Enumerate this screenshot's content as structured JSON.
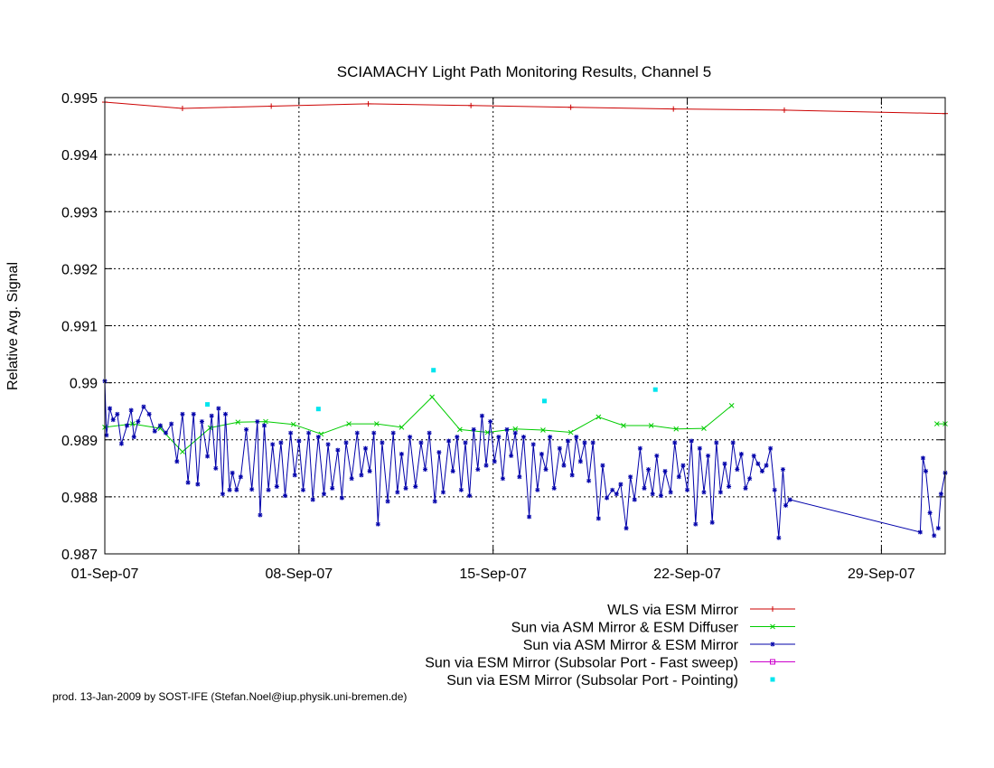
{
  "credit": "prod. 13-Jan-2009 by SOST-IFE (Stefan.Noel@iup.physik.uni-bremen.de)",
  "chart_data": {
    "type": "line",
    "title": "SCIAMACHY Light Path Monitoring Results, Channel 5",
    "xlabel": "",
    "ylabel": "Relative Avg. Signal",
    "x_unit": "days",
    "xlim": [
      0,
      30.3
    ],
    "ylim": [
      0.987,
      0.995
    ],
    "grid": true,
    "legend_position": "bottom-right",
    "x_ticks": [
      {
        "label": "01-Sep-07",
        "value": 0
      },
      {
        "label": "08-Sep-07",
        "value": 7
      },
      {
        "label": "15-Sep-07",
        "value": 14
      },
      {
        "label": "22-Sep-07",
        "value": 21
      },
      {
        "label": "29-Sep-07",
        "value": 28
      }
    ],
    "y_ticks": [
      {
        "label": "0.987",
        "value": 0.987
      },
      {
        "label": "0.988",
        "value": 0.988
      },
      {
        "label": "0.989",
        "value": 0.989
      },
      {
        "label": "0.99",
        "value": 0.99
      },
      {
        "label": "0.991",
        "value": 0.991
      },
      {
        "label": "0.992",
        "value": 0.992
      },
      {
        "label": "0.993",
        "value": 0.993
      },
      {
        "label": "0.994",
        "value": 0.994
      },
      {
        "label": "0.995",
        "value": 0.995
      }
    ],
    "series": [
      {
        "name": "WLS via ESM Mirror",
        "color": "#cc0000",
        "marker": "plus",
        "points": [
          [
            0.0,
            0.99492
          ],
          [
            2.8,
            0.99481
          ],
          [
            6.0,
            0.99485
          ],
          [
            9.5,
            0.99489
          ],
          [
            13.2,
            0.99486
          ],
          [
            16.8,
            0.99483
          ],
          [
            20.5,
            0.9948
          ],
          [
            24.5,
            0.99478
          ],
          [
            30.3,
            0.99472
          ]
        ]
      },
      {
        "name": "Sun via ASM Mirror & ESM Diffuser",
        "color": "#00cc00",
        "marker": "x",
        "points": [
          [
            0.0,
            0.98922
          ],
          [
            1.0,
            0.98928
          ],
          [
            2.0,
            0.9892
          ],
          [
            2.8,
            0.98879
          ],
          [
            3.8,
            0.98921
          ],
          [
            4.8,
            0.98931
          ],
          [
            5.8,
            0.98932
          ],
          [
            6.8,
            0.98927
          ],
          [
            7.8,
            0.9891
          ],
          [
            8.8,
            0.98928
          ],
          [
            9.8,
            0.98928
          ],
          [
            10.7,
            0.98922
          ],
          [
            11.8,
            0.98975
          ],
          [
            12.8,
            0.98918
          ],
          [
            13.8,
            0.98913
          ],
          [
            14.8,
            0.98919
          ],
          [
            15.8,
            0.98917
          ],
          [
            16.8,
            0.98913
          ],
          [
            17.8,
            0.9894
          ],
          [
            18.7,
            0.98925
          ],
          [
            19.7,
            0.98925
          ],
          [
            20.6,
            0.98919
          ],
          [
            21.6,
            0.9892
          ],
          [
            22.6,
            0.9896
          ],
          [
            30.0,
            0.98928
          ],
          [
            30.3,
            0.98928
          ]
        ],
        "breaks_after_index": [
          23
        ]
      },
      {
        "name": "Sun via ASM Mirror & ESM Mirror",
        "color": "#0000aa",
        "marker": "star",
        "points": [
          [
            0.0,
            0.99003
          ],
          [
            0.06,
            0.98908
          ],
          [
            0.18,
            0.98955
          ],
          [
            0.3,
            0.98935
          ],
          [
            0.45,
            0.98945
          ],
          [
            0.6,
            0.98893
          ],
          [
            0.8,
            0.98925
          ],
          [
            0.95,
            0.98952
          ],
          [
            1.05,
            0.98905
          ],
          [
            1.2,
            0.98932
          ],
          [
            1.4,
            0.98958
          ],
          [
            1.6,
            0.98945
          ],
          [
            1.8,
            0.98915
          ],
          [
            2.0,
            0.98925
          ],
          [
            2.2,
            0.98912
          ],
          [
            2.4,
            0.98928
          ],
          [
            2.6,
            0.98862
          ],
          [
            2.8,
            0.98945
          ],
          [
            3.0,
            0.98825
          ],
          [
            3.2,
            0.98945
          ],
          [
            3.35,
            0.98822
          ],
          [
            3.5,
            0.98932
          ],
          [
            3.7,
            0.98871
          ],
          [
            3.85,
            0.98942
          ],
          [
            4.0,
            0.9885
          ],
          [
            4.1,
            0.98955
          ],
          [
            4.25,
            0.98805
          ],
          [
            4.35,
            0.98945
          ],
          [
            4.5,
            0.98812
          ],
          [
            4.6,
            0.98842
          ],
          [
            4.75,
            0.98812
          ],
          [
            4.9,
            0.98835
          ],
          [
            5.1,
            0.98918
          ],
          [
            5.3,
            0.98813
          ],
          [
            5.5,
            0.98932
          ],
          [
            5.6,
            0.98768
          ],
          [
            5.75,
            0.98925
          ],
          [
            5.9,
            0.98812
          ],
          [
            6.05,
            0.98892
          ],
          [
            6.2,
            0.98818
          ],
          [
            6.35,
            0.98895
          ],
          [
            6.5,
            0.98802
          ],
          [
            6.7,
            0.98912
          ],
          [
            6.85,
            0.98838
          ],
          [
            7.0,
            0.98898
          ],
          [
            7.15,
            0.98812
          ],
          [
            7.35,
            0.98912
          ],
          [
            7.5,
            0.98795
          ],
          [
            7.7,
            0.98905
          ],
          [
            7.9,
            0.98805
          ],
          [
            8.05,
            0.98892
          ],
          [
            8.2,
            0.98815
          ],
          [
            8.4,
            0.98882
          ],
          [
            8.55,
            0.98798
          ],
          [
            8.7,
            0.98895
          ],
          [
            8.9,
            0.98832
          ],
          [
            9.1,
            0.98912
          ],
          [
            9.25,
            0.98838
          ],
          [
            9.4,
            0.98885
          ],
          [
            9.55,
            0.98845
          ],
          [
            9.7,
            0.98912
          ],
          [
            9.85,
            0.98752
          ],
          [
            10.0,
            0.98895
          ],
          [
            10.2,
            0.98792
          ],
          [
            10.4,
            0.98912
          ],
          [
            10.55,
            0.98808
          ],
          [
            10.7,
            0.98875
          ],
          [
            10.85,
            0.98815
          ],
          [
            11.0,
            0.98905
          ],
          [
            11.2,
            0.98818
          ],
          [
            11.4,
            0.98895
          ],
          [
            11.55,
            0.98848
          ],
          [
            11.7,
            0.98912
          ],
          [
            11.9,
            0.98792
          ],
          [
            12.05,
            0.98878
          ],
          [
            12.2,
            0.98808
          ],
          [
            12.4,
            0.98898
          ],
          [
            12.55,
            0.98845
          ],
          [
            12.7,
            0.98905
          ],
          [
            12.85,
            0.98812
          ],
          [
            13.0,
            0.98895
          ],
          [
            13.15,
            0.98802
          ],
          [
            13.3,
            0.98918
          ],
          [
            13.45,
            0.98848
          ],
          [
            13.6,
            0.98942
          ],
          [
            13.75,
            0.98855
          ],
          [
            13.9,
            0.98932
          ],
          [
            14.05,
            0.98862
          ],
          [
            14.2,
            0.98905
          ],
          [
            14.35,
            0.98832
          ],
          [
            14.5,
            0.98918
          ],
          [
            14.65,
            0.98872
          ],
          [
            14.8,
            0.98912
          ],
          [
            14.95,
            0.98835
          ],
          [
            15.1,
            0.98905
          ],
          [
            15.3,
            0.98765
          ],
          [
            15.45,
            0.98892
          ],
          [
            15.6,
            0.98812
          ],
          [
            15.75,
            0.98875
          ],
          [
            15.9,
            0.98848
          ],
          [
            16.05,
            0.98905
          ],
          [
            16.2,
            0.98815
          ],
          [
            16.4,
            0.98885
          ],
          [
            16.55,
            0.98855
          ],
          [
            16.7,
            0.98898
          ],
          [
            16.85,
            0.98838
          ],
          [
            17.0,
            0.98905
          ],
          [
            17.15,
            0.98862
          ],
          [
            17.3,
            0.98895
          ],
          [
            17.45,
            0.98828
          ],
          [
            17.6,
            0.98895
          ],
          [
            17.8,
            0.98762
          ],
          [
            17.95,
            0.98855
          ],
          [
            18.1,
            0.98798
          ],
          [
            18.3,
            0.98812
          ],
          [
            18.45,
            0.98805
          ],
          [
            18.6,
            0.98822
          ],
          [
            18.8,
            0.98745
          ],
          [
            18.95,
            0.98835
          ],
          [
            19.1,
            0.98795
          ],
          [
            19.3,
            0.98885
          ],
          [
            19.45,
            0.98815
          ],
          [
            19.6,
            0.98848
          ],
          [
            19.75,
            0.98805
          ],
          [
            19.9,
            0.98872
          ],
          [
            20.05,
            0.98802
          ],
          [
            20.2,
            0.98845
          ],
          [
            20.4,
            0.98808
          ],
          [
            20.55,
            0.98895
          ],
          [
            20.7,
            0.98835
          ],
          [
            20.85,
            0.98855
          ],
          [
            21.0,
            0.98812
          ],
          [
            21.15,
            0.98898
          ],
          [
            21.3,
            0.98752
          ],
          [
            21.45,
            0.98885
          ],
          [
            21.6,
            0.98808
          ],
          [
            21.75,
            0.98872
          ],
          [
            21.9,
            0.98755
          ],
          [
            22.05,
            0.98895
          ],
          [
            22.2,
            0.98808
          ],
          [
            22.35,
            0.98858
          ],
          [
            22.5,
            0.98818
          ],
          [
            22.65,
            0.98895
          ],
          [
            22.8,
            0.98848
          ],
          [
            22.95,
            0.98875
          ],
          [
            23.1,
            0.98815
          ],
          [
            23.25,
            0.98832
          ],
          [
            23.4,
            0.98872
          ],
          [
            23.55,
            0.98858
          ],
          [
            23.7,
            0.98845
          ],
          [
            23.85,
            0.98855
          ],
          [
            24.0,
            0.98885
          ],
          [
            24.15,
            0.98812
          ],
          [
            24.3,
            0.98728
          ],
          [
            24.45,
            0.98848
          ],
          [
            24.55,
            0.98785
          ],
          [
            24.7,
            0.98795
          ],
          [
            29.4,
            0.98738
          ],
          [
            29.5,
            0.98868
          ],
          [
            29.6,
            0.98845
          ],
          [
            29.75,
            0.98772
          ],
          [
            29.9,
            0.98732
          ],
          [
            30.05,
            0.98745
          ],
          [
            30.15,
            0.98805
          ],
          [
            30.3,
            0.98842
          ]
        ],
        "breaks_after_index": [
          161
        ]
      },
      {
        "name": "Sun via ESM Mirror (Subsolar Port - Fast sweep)",
        "color": "#cc00cc",
        "marker": "square",
        "points": []
      },
      {
        "name": "Sun via ESM Mirror (Subsolar Port - Pointing)",
        "color": "#00e5ee",
        "marker": "dot",
        "points": [
          [
            3.7,
            0.98962
          ],
          [
            7.7,
            0.98954
          ],
          [
            11.85,
            0.99022
          ],
          [
            15.85,
            0.98968
          ],
          [
            19.85,
            0.98988
          ]
        ]
      }
    ]
  }
}
